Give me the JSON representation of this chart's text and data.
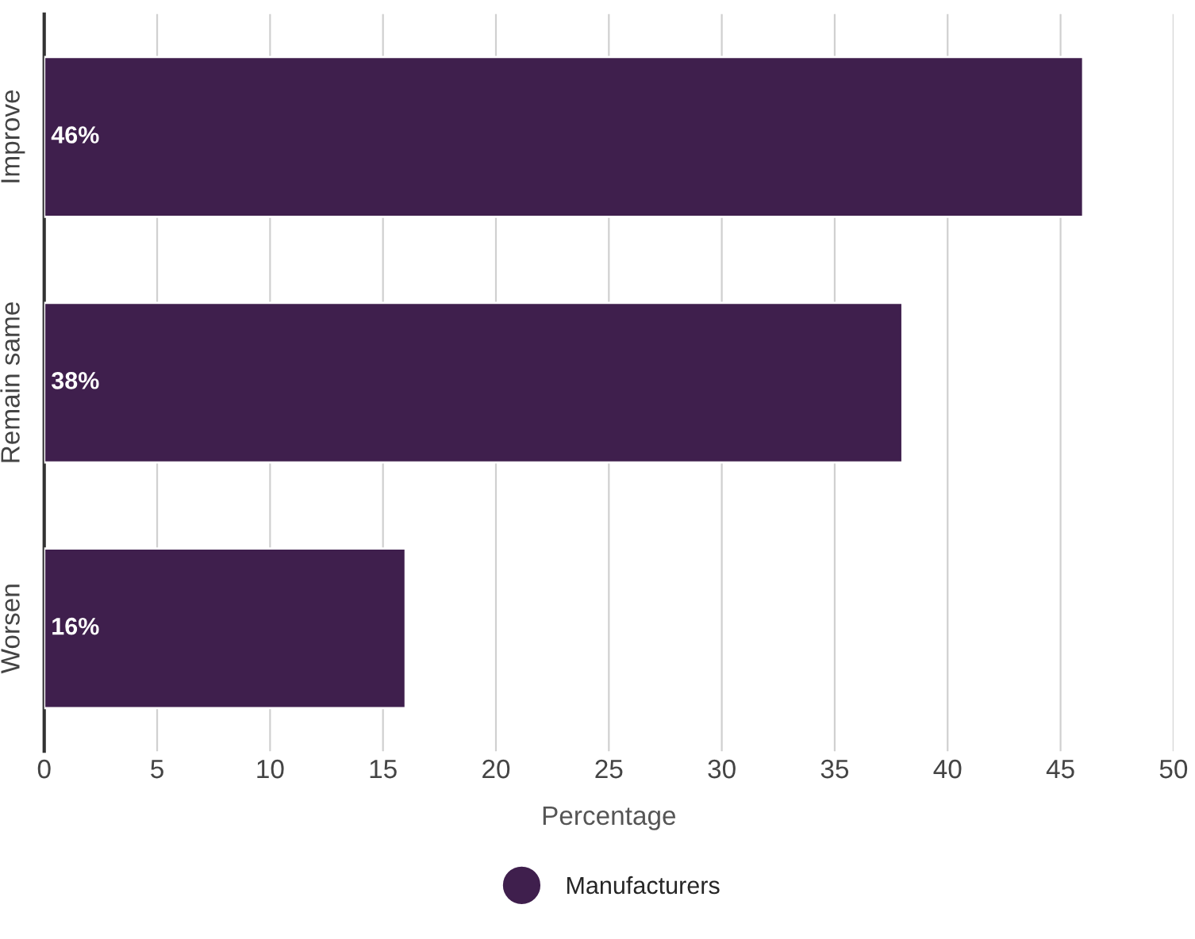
{
  "chart_data": {
    "type": "bar",
    "orientation": "horizontal",
    "categories": [
      "Improve",
      "Remain same",
      "Worsen"
    ],
    "series": [
      {
        "name": "Manufacturers",
        "color": "#3f1f4d",
        "values": [
          46,
          38,
          16
        ],
        "value_labels": [
          "46%",
          "38%",
          "16%"
        ]
      }
    ],
    "xlabel": "Percentage",
    "xlim": [
      0,
      50
    ],
    "xticks": [
      0,
      5,
      10,
      15,
      20,
      25,
      30,
      35,
      40,
      45,
      50
    ],
    "grid": "x",
    "legend": "bottom"
  }
}
